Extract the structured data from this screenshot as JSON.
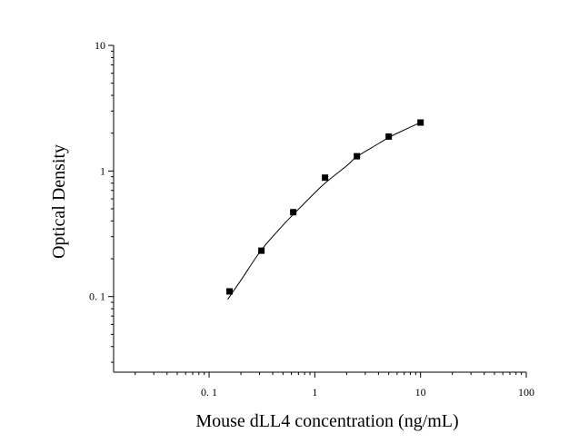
{
  "chart_data": {
    "type": "scatter",
    "title": "",
    "xlabel": "Mouse dLL4 concentration (ng/mL)",
    "ylabel": "Optical Density",
    "x_scale": "log",
    "y_scale": "log",
    "xlim": [
      0.0125,
      100
    ],
    "ylim": [
      0.025,
      10
    ],
    "x_ticks": [
      {
        "value": 0.1,
        "label": "0. 1"
      },
      {
        "value": 1,
        "label": "1"
      },
      {
        "value": 10,
        "label": "10"
      },
      {
        "value": 100,
        "label": "100"
      }
    ],
    "y_ticks": [
      {
        "value": 0.1,
        "label": "0. 1"
      },
      {
        "value": 1,
        "label": "1"
      },
      {
        "value": 10,
        "label": "10"
      }
    ],
    "grid": false,
    "legend": "none",
    "series": [
      {
        "marker": "square",
        "color": "#000000",
        "x": [
          0.156,
          0.3125,
          0.625,
          1.25,
          2.5,
          5,
          10
        ],
        "y": [
          0.11,
          0.232,
          0.47,
          0.885,
          1.31,
          1.88,
          2.43
        ]
      }
    ],
    "fit_curve": {
      "color": "#000000",
      "x": [
        0.15,
        0.2,
        0.3125,
        0.5,
        0.625,
        1,
        1.25,
        2,
        2.5,
        4,
        5,
        7,
        10
      ],
      "y": [
        0.095,
        0.135,
        0.235,
        0.37,
        0.45,
        0.67,
        0.8,
        1.1,
        1.3,
        1.65,
        1.85,
        2.12,
        2.43
      ]
    }
  }
}
